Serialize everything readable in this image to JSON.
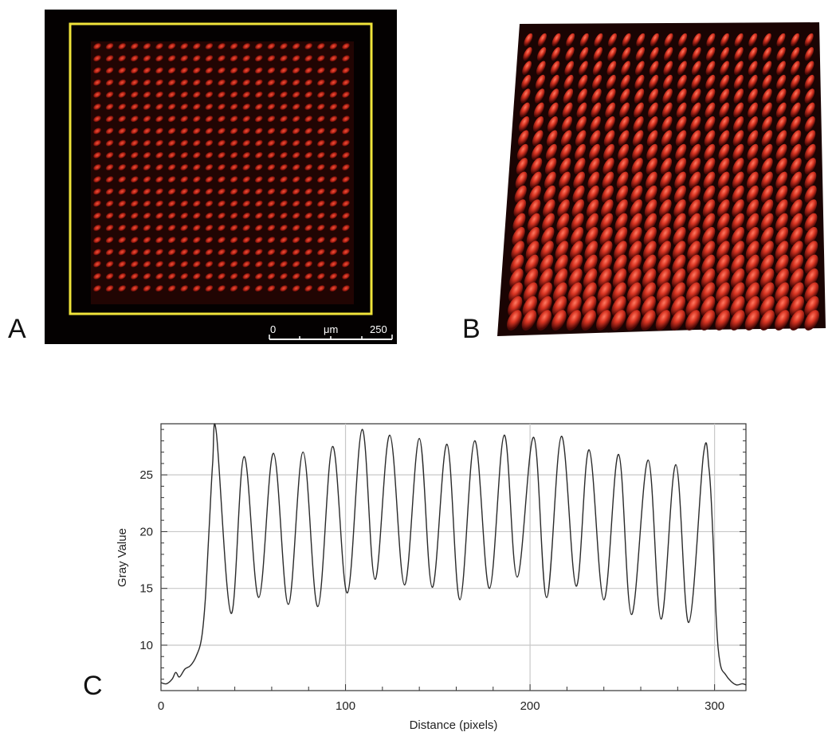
{
  "panels": {
    "a": {
      "letter": "A"
    },
    "b": {
      "letter": "B"
    },
    "c": {
      "letter": "C"
    }
  },
  "scale_bar": {
    "start": "0",
    "unit": "μm",
    "end": "250"
  },
  "colors": {
    "micrograph_bg": "#040101",
    "spot": "#d02a1c",
    "roi_box": "#f0e43a",
    "plot_line": "#2a2a2a",
    "grid": "#c8c8c8"
  },
  "spot_grid": {
    "rows": 21,
    "cols": 21
  },
  "chart_data": {
    "type": "line",
    "title": "",
    "xlabel": "Distance (pixels)",
    "ylabel": "Gray Value",
    "xlim": [
      0,
      317
    ],
    "ylim": [
      6,
      29.5
    ],
    "xticks": [
      0,
      100,
      200,
      300
    ],
    "yticks": [
      10,
      15,
      20,
      25
    ],
    "grid": true,
    "peaks": [
      {
        "x": 30,
        "y": 28.7
      },
      {
        "x": 45,
        "y": 26.6
      },
      {
        "x": 61,
        "y": 26.9
      },
      {
        "x": 77,
        "y": 27.0
      },
      {
        "x": 93,
        "y": 27.5
      },
      {
        "x": 109,
        "y": 29.0
      },
      {
        "x": 124,
        "y": 28.5
      },
      {
        "x": 140,
        "y": 28.2
      },
      {
        "x": 155,
        "y": 27.7
      },
      {
        "x": 170,
        "y": 28.0
      },
      {
        "x": 186,
        "y": 28.5
      },
      {
        "x": 202,
        "y": 28.3
      },
      {
        "x": 217,
        "y": 28.4
      },
      {
        "x": 232,
        "y": 27.2
      },
      {
        "x": 248,
        "y": 26.8
      },
      {
        "x": 264,
        "y": 26.3
      },
      {
        "x": 279,
        "y": 25.9
      },
      {
        "x": 294,
        "y": 26.8
      }
    ],
    "troughs": [
      {
        "x": 38,
        "y": 12.8
      },
      {
        "x": 53,
        "y": 14.2
      },
      {
        "x": 69,
        "y": 13.6
      },
      {
        "x": 85,
        "y": 13.4
      },
      {
        "x": 101,
        "y": 14.6
      },
      {
        "x": 116,
        "y": 15.8
      },
      {
        "x": 132,
        "y": 15.3
      },
      {
        "x": 147,
        "y": 15.1
      },
      {
        "x": 162,
        "y": 14.0
      },
      {
        "x": 178,
        "y": 15.0
      },
      {
        "x": 193,
        "y": 16.0
      },
      {
        "x": 209,
        "y": 14.2
      },
      {
        "x": 225,
        "y": 15.2
      },
      {
        "x": 240,
        "y": 14.0
      },
      {
        "x": 255,
        "y": 12.7
      },
      {
        "x": 271,
        "y": 12.3
      },
      {
        "x": 286,
        "y": 12.0
      }
    ],
    "baseline_left": [
      {
        "x": 0,
        "y": 6.7
      },
      {
        "x": 3,
        "y": 6.6
      },
      {
        "x": 6,
        "y": 7.0
      },
      {
        "x": 8,
        "y": 7.6
      },
      {
        "x": 10,
        "y": 7.2
      },
      {
        "x": 13,
        "y": 7.9
      },
      {
        "x": 16,
        "y": 8.2
      },
      {
        "x": 19,
        "y": 9.0
      },
      {
        "x": 22,
        "y": 10.6
      },
      {
        "x": 24,
        "y": 14.0
      },
      {
        "x": 26,
        "y": 20.0
      },
      {
        "x": 28,
        "y": 26.0
      }
    ],
    "baseline_right": [
      {
        "x": 297,
        "y": 25.5
      },
      {
        "x": 299,
        "y": 20.0
      },
      {
        "x": 301,
        "y": 12.0
      },
      {
        "x": 303,
        "y": 8.4
      },
      {
        "x": 306,
        "y": 7.4
      },
      {
        "x": 309,
        "y": 6.8
      },
      {
        "x": 312,
        "y": 6.5
      },
      {
        "x": 315,
        "y": 6.6
      },
      {
        "x": 317,
        "y": 6.5
      }
    ]
  }
}
